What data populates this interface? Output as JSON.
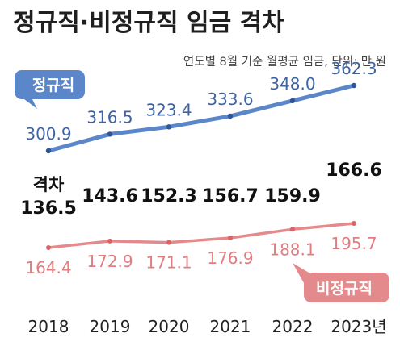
{
  "chart_data": {
    "type": "line",
    "title": "정규직·비정규직 임금 격차",
    "subtitle": "연도별 8월 기준 월평균 임금, 단위: 만 원",
    "categories": [
      "2018",
      "2019",
      "2020",
      "2021",
      "2022",
      "2023년"
    ],
    "series": [
      {
        "name": "정규직",
        "color": "#5b86c9",
        "values": [
          300.9,
          316.5,
          323.4,
          333.6,
          348.0,
          362.3
        ],
        "labels": [
          "300.9",
          "316.5",
          "323.4",
          "333.6",
          "348.0",
          "362.3"
        ]
      },
      {
        "name": "비정규직",
        "color": "#e48a8c",
        "values": [
          164.4,
          172.9,
          171.1,
          176.9,
          188.1,
          195.7
        ],
        "labels": [
          "164.4",
          "172.9",
          "171.1",
          "176.9",
          "188.1",
          "195.7"
        ]
      }
    ],
    "gap_label": "격차",
    "gap_values": [
      "136.5",
      "143.6",
      "152.3",
      "156.7",
      "159.9",
      "166.6"
    ],
    "grid": false,
    "legend": "callout-badges"
  }
}
